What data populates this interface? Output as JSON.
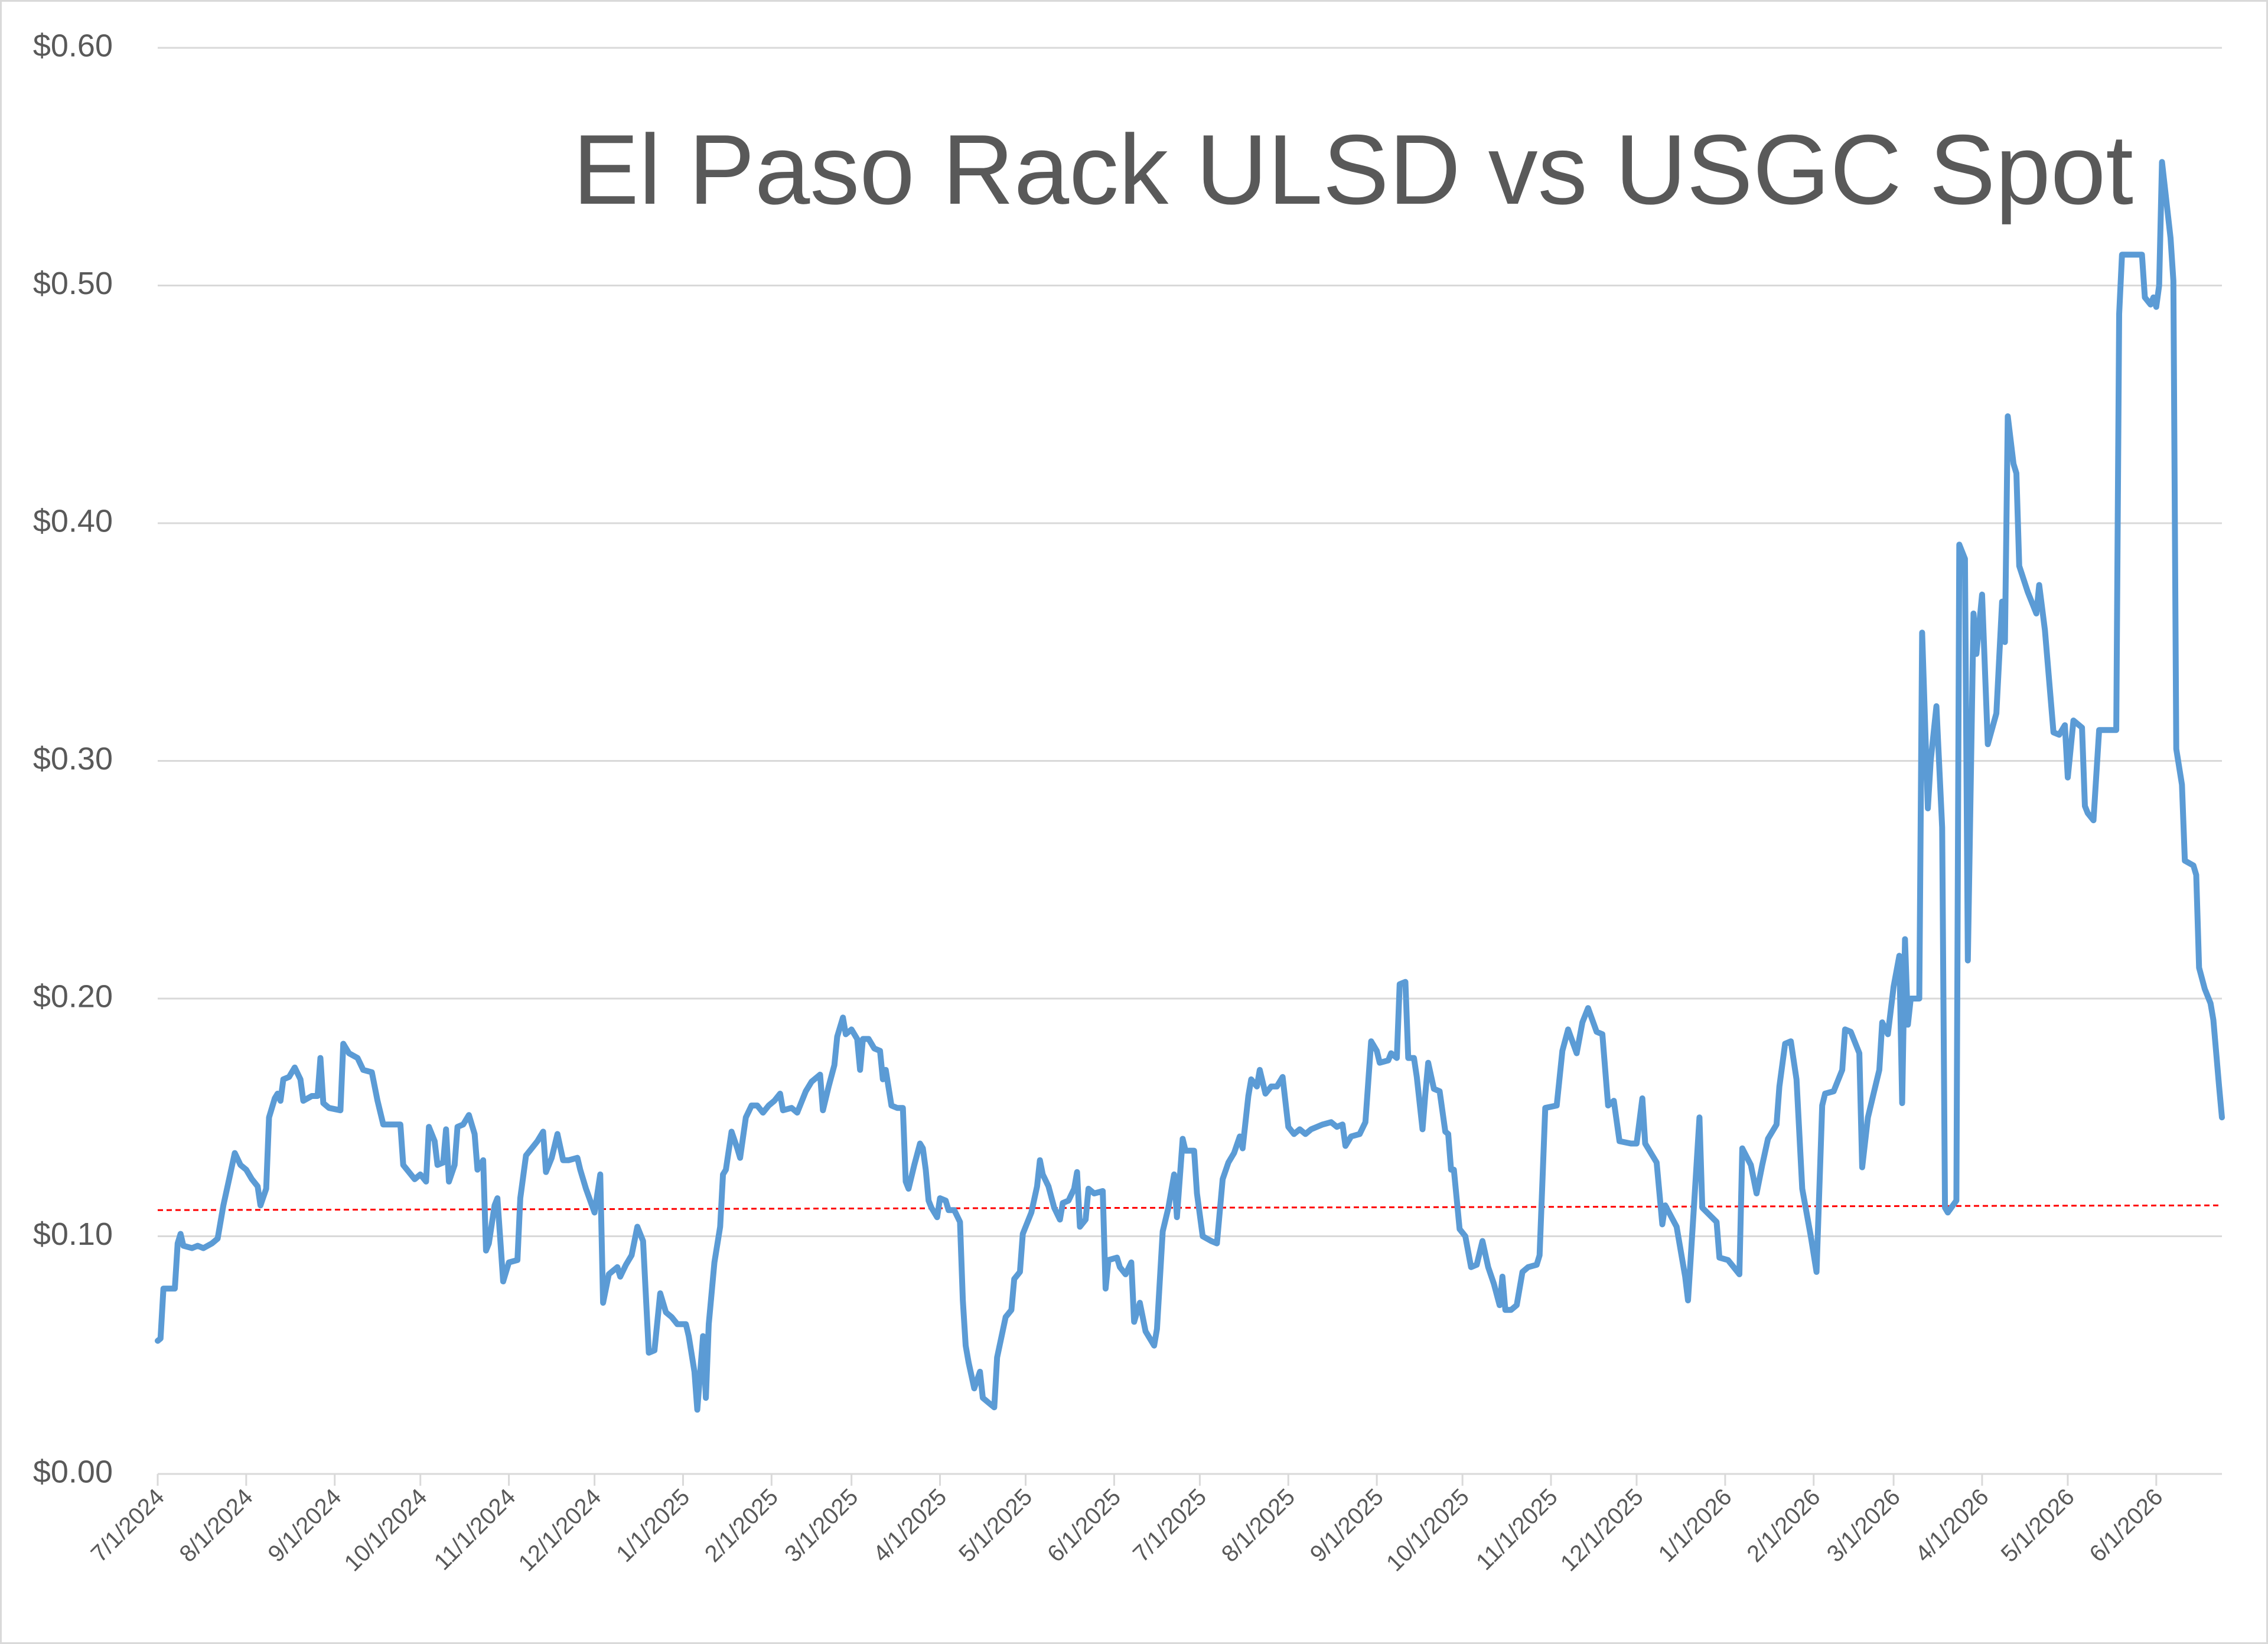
{
  "chart_data": {
    "type": "line",
    "title": "El Paso Rack ULSD vs USGC Spot",
    "x": [
      "7/1/2024",
      "7/2/2024",
      "7/3/2024",
      "7/7/2024",
      "7/8/2024",
      "7/9/2024",
      "7/10/2024",
      "7/13/2024",
      "7/15/2024",
      "7/17/2024",
      "7/20/2024",
      "7/22/2024",
      "7/24/2024",
      "7/26/2024",
      "7/28/2024",
      "7/30/2024",
      "8/1/2024",
      "8/3/2024",
      "8/5/2024",
      "8/6/2024",
      "8/8/2024",
      "8/9/2024",
      "8/11/2024",
      "8/12/2024",
      "8/13/2024",
      "8/14/2024",
      "8/16/2024",
      "8/18/2024",
      "8/20/2024",
      "8/21/2024",
      "8/24/2024",
      "8/26/2024",
      "8/27/2024",
      "8/28/2024",
      "8/30/2024",
      "9/3/2024",
      "9/4/2024",
      "9/6/2024",
      "9/9/2024",
      "9/11/2024",
      "9/14/2024",
      "9/16/2024",
      "9/18/2024",
      "9/21/2024",
      "9/24/2024",
      "9/25/2024",
      "9/27/2024",
      "9/29/2024",
      "10/1/2024",
      "10/3/2024",
      "10/4/2024",
      "10/6/2024",
      "10/7/2024",
      "10/9/2024",
      "10/10/2024",
      "10/11/2024",
      "10/13/2024",
      "10/14/2024",
      "10/16/2024",
      "10/18/2024",
      "10/20/2024",
      "10/21/2024",
      "10/23/2024",
      "10/24/2024",
      "10/25/2024",
      "10/27/2024",
      "10/28/2024",
      "10/30/2024",
      "11/1/2024",
      "11/4/2024",
      "11/5/2024",
      "11/7/2024",
      "11/9/2024",
      "11/11/2024",
      "11/13/2024",
      "11/14/2024",
      "11/16/2024",
      "11/18/2024",
      "11/20/2024",
      "11/22/2024",
      "11/25/2024",
      "11/26/2024",
      "11/28/2024",
      "12/1/2024",
      "12/3/2024",
      "12/4/2024",
      "12/6/2024",
      "12/9/2024",
      "12/10/2024",
      "12/12/2024",
      "12/14/2024",
      "12/16/2024",
      "12/18/2024",
      "12/20/2024",
      "12/22/2024",
      "12/24/2024",
      "12/26/2024",
      "12/28/2024",
      "12/30/2024",
      "1/2/2025",
      "1/3/2025",
      "1/5/2025",
      "1/6/2025",
      "1/8/2025",
      "1/9/2025",
      "1/10/2025",
      "1/12/2025",
      "1/14/2025",
      "1/15/2025",
      "1/16/2025",
      "1/18/2025",
      "1/20/2025",
      "1/21/2025",
      "1/23/2025",
      "1/25/2025",
      "1/27/2025",
      "1/29/2025",
      "1/31/2025",
      "2/2/2025",
      "2/4/2025",
      "2/5/2025",
      "2/8/2025",
      "2/10/2025",
      "2/13/2025",
      "2/15/2025",
      "2/18/2025",
      "2/19/2025",
      "2/21/2025",
      "2/23/2025",
      "2/24/2025",
      "2/26/2025",
      "2/27/2025",
      "3/1/2025",
      "3/3/2025",
      "3/4/2025",
      "3/5/2025",
      "3/7/2025",
      "3/9/2025",
      "3/11/2025",
      "3/12/2025",
      "3/13/2025",
      "3/15/2025",
      "3/17/2025",
      "3/19/2025",
      "3/20/2025",
      "3/21/2025",
      "3/23/2025",
      "3/25/2025",
      "3/26/2025",
      "3/27/2025",
      "3/28/2025",
      "3/29/2025",
      "3/31/2025",
      "4/1/2025",
      "4/3/2025",
      "4/4/2025",
      "4/6/2025",
      "4/8/2025",
      "4/9/2025",
      "4/10/2025",
      "4/11/2025",
      "4/13/2025",
      "4/15/2025",
      "4/16/2025",
      "4/18/2025",
      "4/20/2025",
      "4/21/2025",
      "4/24/2025",
      "4/26/2025",
      "4/27/2025",
      "4/29/2025",
      "4/30/2025",
      "5/3/2025",
      "5/5/2025",
      "5/6/2025",
      "5/7/2025",
      "5/9/2025",
      "5/11/2025",
      "5/13/2025",
      "5/14/2025",
      "5/16/2025",
      "5/18/2025",
      "5/19/2025",
      "5/20/2025",
      "5/22/2025",
      "5/23/2025",
      "5/25/2025",
      "5/28/2025",
      "5/29/2025",
      "5/30/2025",
      "6/2/2025",
      "6/3/2025",
      "6/5/2025",
      "6/7/2025",
      "6/8/2025",
      "6/10/2025",
      "6/12/2025",
      "6/15/2025",
      "6/16/2025",
      "6/18/2025",
      "6/20/2025",
      "6/22/2025",
      "6/23/2025",
      "6/25/2025",
      "6/26/2025",
      "6/29/2025",
      "6/30/2025",
      "7/2/2025",
      "7/5/2025",
      "7/7/2025",
      "7/9/2025",
      "7/11/2025",
      "7/13/2025",
      "7/15/2025",
      "7/16/2025",
      "7/18/2025",
      "7/19/2025",
      "7/21/2025",
      "7/22/2025",
      "7/24/2025",
      "7/26/2025",
      "7/28/2025",
      "7/30/2025",
      "8/1/2025",
      "8/3/2025",
      "8/5/2025",
      "8/7/2025",
      "8/9/2025",
      "8/11/2025",
      "8/13/2025",
      "8/16/2025",
      "8/18/2025",
      "8/20/2025",
      "8/21/2025",
      "8/23/2025",
      "8/26/2025",
      "8/28/2025",
      "8/30/2025",
      "9/1/2025",
      "9/2/2025",
      "9/5/2025",
      "9/6/2025",
      "9/8/2025",
      "9/9/2025",
      "9/11/2025",
      "9/12/2025",
      "9/14/2025",
      "9/15/2025",
      "9/17/2025",
      "9/18/2025",
      "9/19/2025",
      "9/21/2025",
      "9/23/2025",
      "9/25/2025",
      "9/26/2025",
      "9/27/2025",
      "9/28/2025",
      "9/30/2025",
      "10/2/2025",
      "10/4/2025",
      "10/6/2025",
      "10/8/2025",
      "10/10/2025",
      "10/12/2025",
      "10/14/2025",
      "10/15/2025",
      "10/16/2025",
      "10/18/2025",
      "10/20/2025",
      "10/22/2025",
      "10/24/2025",
      "10/27/2025",
      "10/28/2025",
      "10/30/2025",
      "11/3/2025",
      "11/5/2025",
      "11/7/2025",
      "11/10/2025",
      "11/12/2025",
      "11/14/2025",
      "11/17/2025",
      "11/19/2025",
      "11/21/2025",
      "11/23/2025",
      "11/25/2025",
      "11/29/2025",
      "12/1/2025",
      "12/3/2025",
      "12/4/2025",
      "12/8/2025",
      "12/10/2025",
      "12/11/2025",
      "12/15/2025",
      "12/18/2025",
      "12/19/2025",
      "12/21/2025",
      "12/23/2025",
      "12/24/2025",
      "12/29/2025",
      "12/30/2025",
      "1/2/2026",
      "1/4/2026",
      "1/6/2026",
      "1/7/2026",
      "1/10/2026",
      "1/12/2026",
      "1/14/2026",
      "1/16/2026",
      "1/19/2026",
      "1/20/2026",
      "1/22/2026",
      "1/24/2026",
      "1/26/2026",
      "1/28/2026",
      "1/31/2026",
      "2/2/2026",
      "2/4/2026",
      "2/5/2026",
      "2/8/2026",
      "2/11/2026",
      "2/12/2026",
      "2/14/2026",
      "2/17/2026",
      "2/18/2026",
      "2/20/2026",
      "2/22/2026",
      "2/24/2026",
      "2/25/2026",
      "2/27/2026",
      "3/1/2026",
      "3/3/2026",
      "3/4/2026",
      "3/5/2026",
      "3/6/2026",
      "3/7/2026",
      "3/10/2026",
      "3/11/2026",
      "3/13/2026",
      "3/14/2026",
      "3/16/2026",
      "3/18/2026",
      "3/19/2026",
      "3/20/2026",
      "3/23/2026",
      "3/24/2026",
      "3/26/2026",
      "3/27/2026",
      "3/29/2026",
      "3/30/2026",
      "4/1/2026",
      "4/3/2026",
      "4/6/2026",
      "4/8/2026",
      "4/9/2026",
      "4/10/2026",
      "4/12/2026",
      "4/13/2026",
      "4/14/2026",
      "4/17/2026",
      "4/20/2026",
      "4/21/2026",
      "4/23/2026",
      "4/26/2026",
      "4/28/2026",
      "4/30/2026",
      "5/1/2026",
      "5/3/2026",
      "5/6/2026",
      "5/7/2026",
      "5/8/2026",
      "5/10/2026",
      "5/12/2026",
      "5/15/2026",
      "5/18/2026",
      "5/19/2026",
      "5/20/2026",
      "5/27/2026",
      "5/28/2026",
      "5/30/2026",
      "5/31/2026",
      "6/1/2026",
      "6/2/2026",
      "6/3/2026",
      "6/6/2026",
      "6/7/2026",
      "6/8/2026",
      "6/10/2026",
      "6/11/2026",
      "6/14/2026",
      "6/15/2026",
      "6/16/2026",
      "6/18/2026",
      "6/20/2026",
      "6/21/2026",
      "6/23/2026",
      "6/24/2026"
    ],
    "series": [
      {
        "color": "#5b9bd5",
        "values": [
          0.056,
          0.057,
          0.078,
          0.078,
          0.097,
          0.101,
          0.096,
          0.095,
          0.096,
          0.095,
          0.097,
          0.099,
          0.113,
          0.124,
          0.135,
          0.13,
          0.128,
          0.124,
          0.121,
          0.113,
          0.12,
          0.15,
          0.158,
          0.16,
          0.157,
          0.166,
          0.167,
          0.171,
          0.166,
          0.157,
          0.159,
          0.159,
          0.175,
          0.156,
          0.154,
          0.153,
          0.181,
          0.177,
          0.175,
          0.17,
          0.169,
          0.157,
          0.147,
          0.147,
          0.147,
          0.13,
          0.127,
          0.124,
          0.126,
          0.123,
          0.146,
          0.14,
          0.13,
          0.131,
          0.145,
          0.123,
          0.13,
          0.146,
          0.147,
          0.151,
          0.143,
          0.128,
          0.132,
          0.094,
          0.097,
          0.113,
          0.116,
          0.081,
          0.089,
          0.09,
          0.116,
          0.134,
          0.137,
          0.14,
          0.144,
          0.127,
          0.133,
          0.143,
          0.132,
          0.132,
          0.133,
          0.128,
          0.12,
          0.11,
          0.126,
          0.072,
          0.084,
          0.087,
          0.083,
          0.088,
          0.092,
          0.104,
          0.098,
          0.051,
          0.052,
          0.076,
          0.068,
          0.066,
          0.063,
          0.063,
          0.058,
          0.043,
          0.027,
          0.058,
          0.032,
          0.063,
          0.089,
          0.104,
          0.126,
          0.128,
          0.144,
          0.137,
          0.133,
          0.15,
          0.155,
          0.155,
          0.152,
          0.155,
          0.157,
          0.16,
          0.153,
          0.154,
          0.152,
          0.161,
          0.165,
          0.168,
          0.153,
          0.163,
          0.172,
          0.184,
          0.192,
          0.185,
          0.187,
          0.183,
          0.17,
          0.183,
          0.183,
          0.179,
          0.178,
          0.166,
          0.17,
          0.155,
          0.154,
          0.154,
          0.123,
          0.12,
          0.13,
          0.139,
          0.137,
          0.128,
          0.115,
          0.112,
          0.108,
          0.116,
          0.115,
          0.111,
          0.111,
          0.106,
          0.073,
          0.054,
          0.047,
          0.036,
          0.043,
          0.032,
          0.03,
          0.028,
          0.049,
          0.066,
          0.069,
          0.082,
          0.085,
          0.101,
          0.11,
          0.121,
          0.132,
          0.126,
          0.121,
          0.112,
          0.107,
          0.114,
          0.115,
          0.12,
          0.127,
          0.104,
          0.107,
          0.12,
          0.118,
          0.119,
          0.078,
          0.09,
          0.091,
          0.087,
          0.084,
          0.089,
          0.064,
          0.072,
          0.06,
          0.054,
          0.061,
          0.102,
          0.112,
          0.126,
          0.108,
          0.141,
          0.136,
          0.136,
          0.118,
          0.1,
          0.098,
          0.097,
          0.124,
          0.131,
          0.135,
          0.142,
          0.137,
          0.159,
          0.166,
          0.163,
          0.17,
          0.16,
          0.163,
          0.163,
          0.167,
          0.146,
          0.143,
          0.145,
          0.143,
          0.145,
          0.146,
          0.147,
          0.148,
          0.146,
          0.147,
          0.138,
          0.142,
          0.143,
          0.148,
          0.182,
          0.178,
          0.173,
          0.174,
          0.177,
          0.175,
          0.206,
          0.207,
          0.175,
          0.175,
          0.167,
          0.145,
          0.16,
          0.173,
          0.162,
          0.161,
          0.144,
          0.143,
          0.128,
          0.128,
          0.103,
          0.1,
          0.087,
          0.088,
          0.098,
          0.087,
          0.08,
          0.071,
          0.083,
          0.069,
          0.069,
          0.071,
          0.085,
          0.087,
          0.088,
          0.092,
          0.154,
          0.155,
          0.178,
          0.187,
          0.177,
          0.19,
          0.196,
          0.186,
          0.185,
          0.155,
          0.157,
          0.14,
          0.139,
          0.139,
          0.158,
          0.139,
          0.131,
          0.105,
          0.113,
          0.104,
          0.083,
          0.073,
          0.111,
          0.15,
          0.112,
          0.106,
          0.091,
          0.09,
          0.087,
          0.084,
          0.137,
          0.13,
          0.118,
          0.13,
          0.141,
          0.147,
          0.163,
          0.181,
          0.182,
          0.166,
          0.12,
          0.1,
          0.085,
          0.155,
          0.16,
          0.161,
          0.17,
          0.187,
          0.186,
          0.177,
          0.129,
          0.15,
          0.16,
          0.17,
          0.19,
          0.185,
          0.205,
          0.218,
          0.156,
          0.225,
          0.189,
          0.2,
          0.2,
          0.354,
          0.28,
          0.3,
          0.323,
          0.272,
          0.112,
          0.11,
          0.115,
          0.391,
          0.385,
          0.216,
          0.362,
          0.345,
          0.37,
          0.307,
          0.32,
          0.367,
          0.35,
          0.445,
          0.425,
          0.421,
          0.382,
          0.371,
          0.362,
          0.374,
          0.355,
          0.312,
          0.311,
          0.315,
          0.293,
          0.317,
          0.314,
          0.281,
          0.278,
          0.275,
          0.313,
          0.313,
          0.313,
          0.488,
          0.513,
          0.513,
          0.495,
          0.492,
          0.495,
          0.491,
          0.5,
          0.552,
          0.52,
          0.502,
          0.305,
          0.29,
          0.258,
          0.256,
          0.252,
          0.213,
          0.204,
          0.198,
          0.191,
          0.163,
          0.15
        ]
      }
    ],
    "reference_line": {
      "values": [
        0.111,
        0.113
      ],
      "color": "#ff0000",
      "dashed": true
    },
    "xlim": [
      "7/1/2024",
      "6/24/2026"
    ],
    "xticks": [
      "7/1/2024",
      "8/1/2024",
      "9/1/2024",
      "10/1/2024",
      "11/1/2024",
      "12/1/2024",
      "1/1/2025",
      "2/1/2025",
      "3/1/2025",
      "4/1/2025",
      "5/1/2025",
      "6/1/2025",
      "7/1/2025",
      "8/1/2025",
      "9/1/2025",
      "10/1/2025",
      "11/1/2025",
      "12/1/2025",
      "1/1/2026",
      "2/1/2026",
      "3/1/2026",
      "4/1/2026",
      "5/1/2026",
      "6/1/2026"
    ],
    "ylim": [
      0,
      0.6
    ],
    "yticks": [
      {
        "value": 0,
        "label": "$0.00"
      },
      {
        "value": 0.1,
        "label": "$0.10"
      },
      {
        "value": 0.2,
        "label": "$0.20"
      },
      {
        "value": 0.3,
        "label": "$0.30"
      },
      {
        "value": 0.4,
        "label": "$0.40"
      },
      {
        "value": 0.5,
        "label": "$0.50"
      },
      {
        "value": 0.6,
        "label": "$0.60"
      }
    ],
    "grid": true
  }
}
